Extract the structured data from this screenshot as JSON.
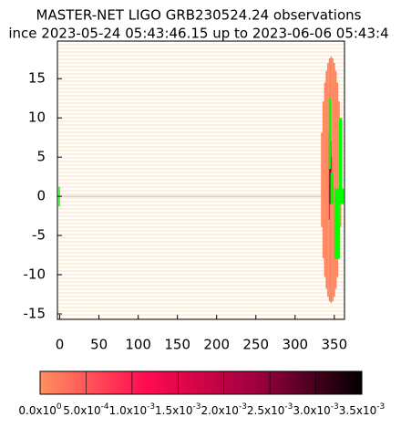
{
  "chart_data": {
    "type": "skymap",
    "title": "MASTER-NET LIGO GRB230524.24 observations",
    "subtitle": "ince 2023-05-24 05:43:46.15 up to 2023-06-06 05:43:4",
    "xlim": [
      -3,
      363
    ],
    "ylim": [
      -15.7,
      19.8
    ],
    "xticks": [
      0,
      50,
      100,
      150,
      200,
      250,
      300,
      350
    ],
    "yticks": [
      -15,
      -10,
      -5,
      0,
      5,
      10,
      15
    ],
    "reference_line": 0,
    "zlim": [
      0,
      0.0035
    ],
    "colormap": [
      "#ff9060",
      "#ff0a50",
      "#a00040",
      "#000000"
    ],
    "zticks": [
      {
        "value": 0,
        "label": "0.0x10",
        "exp": "0"
      },
      {
        "value": 0.0005,
        "label": "5.0x10",
        "exp": "-4"
      },
      {
        "value": 0.001,
        "label": "1.0x10",
        "exp": "-3"
      },
      {
        "value": 0.0015,
        "label": "1.5x10",
        "exp": "-3"
      },
      {
        "value": 0.002,
        "label": "2.0x10",
        "exp": "-3"
      },
      {
        "value": 0.0025,
        "label": "2.5x10",
        "exp": "-3"
      },
      {
        "value": 0.003,
        "label": "3.0x10",
        "exp": "-3"
      },
      {
        "value": 0.0035,
        "label": "3.5x10",
        "exp": "-3"
      }
    ],
    "cells": [
      {
        "ra": [
          333,
          335
        ],
        "dec": [
          -3.9,
          8.1
        ],
        "p": 0.0001
      },
      {
        "ra": [
          335,
          337
        ],
        "dec": [
          -7.9,
          12.1
        ],
        "p": 0.0001
      },
      {
        "ra": [
          337,
          339
        ],
        "dec": [
          -10.3,
          14.5
        ],
        "p": 0.0001
      },
      {
        "ra": [
          339,
          341
        ],
        "dec": [
          -11.8,
          16.0
        ],
        "p": 0.0001
      },
      {
        "ra": [
          341,
          343
        ],
        "dec": [
          -12.8,
          17.0
        ],
        "p": 0.0001
      },
      {
        "ra": [
          343,
          345
        ],
        "dec": [
          -13.4,
          17.6
        ],
        "p": 0.0001
      },
      {
        "ra": [
          345,
          347
        ],
        "dec": [
          -13.6,
          17.8
        ],
        "p": 0.0001
      },
      {
        "ra": [
          347,
          349
        ],
        "dec": [
          -13.4,
          17.6
        ],
        "p": 0.0001
      },
      {
        "ra": [
          349,
          351
        ],
        "dec": [
          -12.8,
          17.0
        ],
        "p": 0.0001
      },
      {
        "ra": [
          351,
          353
        ],
        "dec": [
          -11.8,
          16.0
        ],
        "p": 0.0001
      },
      {
        "ra": [
          353,
          355
        ],
        "dec": [
          -10.3,
          14.5
        ],
        "p": 0.0001
      },
      {
        "ra": [
          355,
          357
        ],
        "dec": [
          -7.9,
          12.1
        ],
        "p": 0.0001
      },
      {
        "ra": [
          357,
          359
        ],
        "dec": [
          -3.9,
          8.1
        ],
        "p": 0.0001
      },
      {
        "ra": [
          343,
          344
        ],
        "dec": [
          -3,
          8
        ],
        "p": 0.0015
      },
      {
        "ra": [
          344,
          345
        ],
        "dec": [
          -1,
          6
        ],
        "p": 0.0028
      },
      {
        "ra": [
          345,
          346
        ],
        "dec": [
          0,
          7
        ],
        "p": 0.002
      },
      {
        "ra": [
          346,
          347
        ],
        "dec": [
          2,
          5
        ],
        "p": 0.0011
      }
    ],
    "fields_color": "#00ff00",
    "fields": [
      {
        "ra": [
          -1.5,
          0.2
        ],
        "dec": [
          -1.3,
          1.2
        ]
      },
      {
        "ra": [
          343,
          345.5
        ],
        "dec": [
          3.5,
          12.5
        ]
      },
      {
        "ra": [
          345,
          349
        ],
        "dec": [
          -1,
          3
        ]
      },
      {
        "ra": [
          350,
          357
        ],
        "dec": [
          -8,
          1
        ]
      },
      {
        "ra": [
          356,
          360
        ],
        "dec": [
          1,
          10
        ]
      },
      {
        "ra": [
          357,
          362
        ],
        "dec": [
          -1,
          1
        ]
      }
    ]
  }
}
